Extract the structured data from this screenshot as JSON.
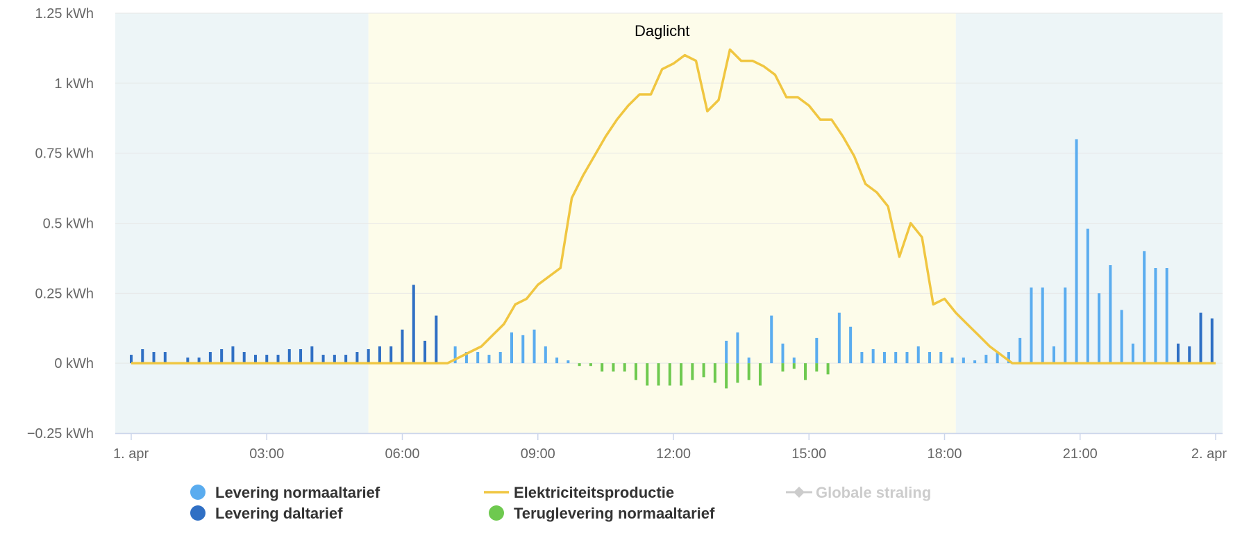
{
  "chart_data": {
    "type": "bar",
    "title": "",
    "xlabel": "",
    "ylabel": "",
    "y_unit": "kWh",
    "ylim": [
      -0.25,
      1.25
    ],
    "y_ticks": [
      -0.25,
      0,
      0.25,
      0.5,
      0.75,
      1,
      1.25
    ],
    "y_tick_labels": [
      "−0.25 kWh",
      "0 kWh",
      "0.25 kWh",
      "0.5 kWh",
      "0.75 kWh",
      "1 kWh",
      "1.25 kWh"
    ],
    "x_unit": "hours since 1 apr 00:00",
    "xlim": [
      0,
      24
    ],
    "x_ticks": [
      0,
      3,
      6,
      9,
      12,
      15,
      18,
      21,
      24
    ],
    "x_tick_labels": [
      "1. apr",
      "03:00",
      "06:00",
      "09:00",
      "12:00",
      "15:00",
      "18:00",
      "21:00",
      "2. apr"
    ],
    "grid": true,
    "legend_position": "bottom",
    "plot_bands": [
      {
        "from": 0,
        "to": 5.25,
        "color": "#edf5f7",
        "label": ""
      },
      {
        "from": 5.25,
        "to": 18.25,
        "color": "#fdfcea",
        "label": "Daglicht"
      },
      {
        "from": 18.25,
        "to": 24,
        "color": "#edf5f7",
        "label": ""
      }
    ],
    "series": [
      {
        "name": "Levering normaaltarief",
        "type": "bar",
        "color": "#5aacef",
        "x": [
          7.17,
          7.42,
          7.67,
          7.92,
          8.17,
          8.42,
          8.67,
          8.92,
          9.17,
          9.42,
          9.67,
          13.17,
          13.42,
          13.67,
          14.17,
          14.42,
          14.67,
          15.17,
          15.67,
          15.92,
          16.17,
          16.42,
          16.67,
          16.92,
          17.17,
          17.42,
          17.67,
          17.92,
          18.17,
          18.42,
          18.67,
          18.92,
          19.17,
          19.42,
          19.67,
          19.92,
          20.17,
          20.42,
          20.67,
          20.92,
          21.17,
          21.42,
          21.67,
          21.92,
          22.17,
          22.42,
          22.67,
          22.92
        ],
        "values": [
          0.06,
          0.04,
          0.04,
          0.03,
          0.04,
          0.11,
          0.1,
          0.12,
          0.06,
          0.02,
          0.01,
          0.08,
          0.11,
          0.02,
          0.17,
          0.07,
          0.02,
          0.09,
          0.18,
          0.13,
          0.04,
          0.05,
          0.04,
          0.04,
          0.04,
          0.06,
          0.04,
          0.04,
          0.02,
          0.02,
          0.01,
          0.03,
          0.04,
          0.04,
          0.09,
          0.27,
          0.27,
          0.06,
          0.27,
          0.8,
          0.48,
          0.25,
          0.35,
          0.19,
          0.07,
          0.4,
          0.34,
          0.34
        ]
      },
      {
        "name": "Levering daltarief",
        "type": "bar",
        "color": "#2f6fc4",
        "x": [
          0,
          0.25,
          0.5,
          0.75,
          1.25,
          1.5,
          1.75,
          2,
          2.25,
          2.5,
          2.75,
          3,
          3.25,
          3.5,
          3.75,
          4,
          4.25,
          4.5,
          4.75,
          5,
          5.25,
          5.5,
          5.75,
          6,
          6.25,
          6.5,
          6.75,
          23.17,
          23.42,
          23.67,
          23.92
        ],
        "values": [
          0.03,
          0.05,
          0.04,
          0.04,
          0.02,
          0.02,
          0.04,
          0.05,
          0.06,
          0.04,
          0.03,
          0.03,
          0.03,
          0.05,
          0.05,
          0.06,
          0.03,
          0.03,
          0.03,
          0.04,
          0.05,
          0.06,
          0.06,
          0.12,
          0.28,
          0.08,
          0.17,
          0.07,
          0.06,
          0.18,
          0.16
        ]
      },
      {
        "name": "Elektriciteitsproductie",
        "type": "line",
        "color": "#f0c641",
        "x": [
          0,
          6.75,
          7,
          7.25,
          7.5,
          7.75,
          8,
          8.25,
          8.5,
          8.75,
          9,
          9.25,
          9.5,
          9.75,
          10,
          10.25,
          10.5,
          10.75,
          11,
          11.25,
          11.5,
          11.75,
          12,
          12.25,
          12.5,
          12.75,
          13,
          13.25,
          13.5,
          13.75,
          14,
          14.25,
          14.5,
          14.75,
          15,
          15.25,
          15.5,
          15.75,
          16,
          16.25,
          16.5,
          16.75,
          17,
          17.25,
          17.5,
          17.75,
          18,
          18.25,
          18.5,
          18.75,
          19,
          19.25,
          19.5,
          19.75,
          24
        ],
        "values": [
          0,
          0,
          0,
          0.02,
          0.04,
          0.06,
          0.1,
          0.14,
          0.21,
          0.23,
          0.28,
          0.31,
          0.34,
          0.59,
          0.67,
          0.74,
          0.81,
          0.87,
          0.92,
          0.96,
          0.96,
          1.05,
          1.07,
          1.1,
          1.08,
          0.9,
          0.94,
          1.12,
          1.08,
          1.08,
          1.06,
          1.03,
          0.95,
          0.95,
          0.92,
          0.87,
          0.87,
          0.81,
          0.74,
          0.64,
          0.61,
          0.56,
          0.38,
          0.5,
          0.45,
          0.21,
          0.23,
          0.18,
          0.14,
          0.1,
          0.06,
          0.03,
          0,
          0,
          0
        ]
      },
      {
        "name": "Teruglevering normaaltarief",
        "type": "bar",
        "color": "#6ec94f",
        "x": [
          9.92,
          10.17,
          10.42,
          10.67,
          10.92,
          11.17,
          11.42,
          11.67,
          11.92,
          12.17,
          12.42,
          12.67,
          12.92,
          13.17,
          13.42,
          13.67,
          13.92,
          14.42,
          14.67,
          14.92,
          15.17,
          15.42
        ],
        "values": [
          -0.01,
          -0.01,
          -0.03,
          -0.03,
          -0.03,
          -0.06,
          -0.08,
          -0.08,
          -0.08,
          -0.08,
          -0.06,
          -0.05,
          -0.07,
          -0.09,
          -0.07,
          -0.06,
          -0.08,
          -0.03,
          -0.02,
          -0.06,
          -0.03,
          -0.04
        ]
      },
      {
        "name": "Globale straling",
        "type": "line",
        "color": "#cccccc",
        "hidden": true,
        "x": [],
        "values": []
      }
    ]
  }
}
